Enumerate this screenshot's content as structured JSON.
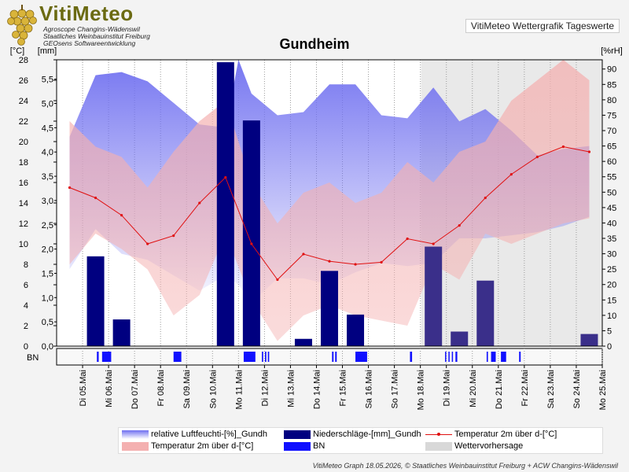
{
  "logo": {
    "title": "VitiMeteo",
    "lines": [
      "Agroscope Changins-Wädenswil",
      "Staatliches Weinbauinstitut Freiburg",
      "GEOsens Softwareentwicklung"
    ]
  },
  "subtitle": "VitiMeteo Wettergrafik Tageswerte",
  "footer": "VitiMeteo  Graph 18.05.2026, © Staatliches Weinbauinstitut Freiburg + ACW Changins-Wädenswil",
  "legend": [
    {
      "label": "relative Luftfeuchti-[%]_Gundh",
      "type": "humidity"
    },
    {
      "label": "Niederschläge-[mm]_Gundh",
      "type": "rain"
    },
    {
      "label": "Temperatur 2m über d-[°C]",
      "type": "templine"
    },
    {
      "label": "Temperatur 2m über d-[°C]",
      "type": "temprange"
    },
    {
      "label": "BN",
      "type": "bn"
    },
    {
      "label": "Wettervorhersage",
      "type": "forecast"
    }
  ],
  "colors": {
    "humidity": "#6f6ff0",
    "rain": "#000080",
    "temp_line": "#e01010",
    "temp_range": "#f4b0b0",
    "bn": "#1010ff",
    "forecast": "#d8d8d8"
  },
  "chart_data": {
    "type": "line",
    "title": "Gundheim",
    "categories": [
      "Di 05.Mai",
      "Mi 06.Mai",
      "Do 07.Mai",
      "Fr 08.Mai",
      "Sa 09.Mai",
      "So 10.Mai",
      "Mo 11.Mai",
      "Di 12.Mai",
      "Mi 13.Mai",
      "Do 14.Mai",
      "Fr 15.Mai",
      "Sa 16.Mai",
      "So 17.Mai",
      "Mo 18.Mai",
      "Di 19.Mai",
      "Mi 20.Mai",
      "Do 21.Mai",
      "Fr 22.Mai",
      "Sa 23.Mai",
      "So 24.Mai",
      "Mo 25.Mai"
    ],
    "y_left_temp": {
      "label": "[°C]",
      "ticks": [
        0,
        2,
        4,
        6,
        8,
        10,
        12,
        14,
        16,
        18,
        20,
        22,
        24,
        26,
        28
      ],
      "ylim": [
        0,
        28
      ]
    },
    "y_left_rain": {
      "label": "[mm]",
      "ticks": [
        "0,0",
        "0,5",
        "1,0",
        "1,5",
        "2,0",
        "2,5",
        "3,0",
        "3,5",
        "4,0",
        "4,5",
        "5,0",
        "5,5"
      ],
      "ylim": [
        0,
        5.9
      ]
    },
    "y_right": {
      "label": "[%rH]",
      "ticks": [
        0,
        5,
        10,
        15,
        20,
        25,
        30,
        35,
        40,
        45,
        50,
        55,
        60,
        65,
        70,
        75,
        80,
        85,
        90
      ],
      "ylim": [
        0,
        93
      ]
    },
    "forecast_from": 14,
    "series": [
      {
        "name": "relative Luftfeuchti-[%]_Gundh",
        "axis": "right",
        "x": [
          -0.5,
          0.5,
          1.5,
          2.5,
          3.5,
          4.5,
          5.5,
          6.0,
          6.5,
          7.5,
          8.5,
          9.5,
          10.5,
          11.5,
          12.5,
          13.5,
          14.5,
          15.5,
          16.5,
          17.5,
          18.5,
          19.5
        ],
        "max": [
          68,
          88,
          89,
          86,
          79,
          72,
          71,
          93,
          82,
          75,
          76,
          85,
          85,
          75,
          74,
          84,
          73,
          77,
          70,
          62,
          64,
          65
        ],
        "min": [
          25,
          38,
          30,
          28,
          23,
          18,
          23,
          20,
          14,
          22,
          22,
          20,
          24,
          27,
          26,
          27,
          35,
          35,
          36,
          37,
          39,
          42
        ]
      },
      {
        "name": "Temperatur 2m über d-[°C]",
        "axis": "left",
        "x": [
          -0.5,
          0.5,
          1.5,
          2.5,
          3.5,
          4.5,
          5.5,
          6.5,
          7.5,
          8.5,
          9.5,
          10.5,
          11.5,
          12.5,
          13.5,
          14.5,
          15.5,
          16.5,
          17.5,
          18.5,
          19.5
        ],
        "max": [
          22,
          19.5,
          18.5,
          15.5,
          19,
          22,
          24,
          16,
          12,
          15,
          16,
          14,
          15,
          18,
          16,
          19,
          20,
          24,
          26,
          28,
          26
        ],
        "min": [
          8,
          11,
          9.5,
          7.5,
          3,
          5,
          11,
          4.5,
          0.5,
          3,
          4,
          3,
          2.5,
          2,
          8,
          6.5,
          11,
          10,
          11,
          12,
          12.5
        ]
      },
      {
        "name": "Temperatur 2m über d-[°C]",
        "axis": "left",
        "x": [
          -0.5,
          0.5,
          1.5,
          2.5,
          3.5,
          4.5,
          5.5,
          6.5,
          7.5,
          8.5,
          9.5,
          10.5,
          11.5,
          12.5,
          13.5,
          14.5,
          15.5,
          16.5,
          17.5,
          18.5,
          19.5
        ],
        "values": [
          15.5,
          14.5,
          12.8,
          10,
          10.8,
          14,
          16.5,
          10,
          6.5,
          9,
          8.3,
          8,
          8.2,
          10.5,
          10,
          11.8,
          14.5,
          16.8,
          18.5,
          19.5,
          19
        ]
      },
      {
        "name": "Niederschläge-[mm]_Gundh",
        "axis": "left_rain",
        "type": "bar",
        "x": [
          0.5,
          1.5,
          5.5,
          6.5,
          8.5,
          9.5,
          10.5,
          13.5,
          14.5,
          15.5,
          19.5
        ],
        "values": [
          1.85,
          0.55,
          5.85,
          4.65,
          0.15,
          1.55,
          0.65,
          2.05,
          0.3,
          1.35,
          0.25
        ]
      }
    ],
    "bn_periods": [
      [
        0.55,
        0.62
      ],
      [
        0.75,
        1.1
      ],
      [
        3.5,
        3.8
      ],
      [
        6.2,
        6.65
      ],
      [
        6.9,
        6.95
      ],
      [
        7.02,
        7.07
      ],
      [
        7.13,
        7.18
      ],
      [
        9.6,
        9.66
      ],
      [
        9.72,
        9.78
      ],
      [
        10.5,
        10.95
      ],
      [
        12.6,
        12.68
      ],
      [
        13.95,
        13.98
      ],
      [
        14.08,
        14.11
      ],
      [
        14.21,
        14.24
      ],
      [
        14.35,
        14.42
      ],
      [
        15.55,
        15.6
      ],
      [
        15.72,
        15.9
      ],
      [
        16.1,
        16.3
      ],
      [
        16.8,
        16.86
      ]
    ]
  }
}
